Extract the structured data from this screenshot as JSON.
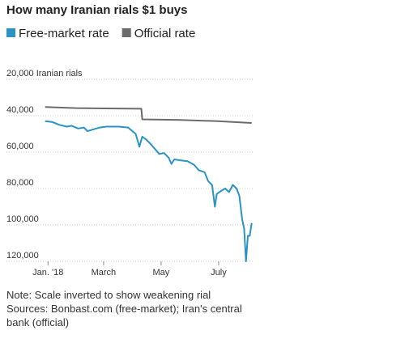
{
  "chart_data": {
    "type": "line",
    "title": "How many Iranian rials $1 buys",
    "inverted": true,
    "grid": true,
    "series": [
      {
        "name": "Free-market rate",
        "color": "#2b93c6",
        "x": [
          -3,
          5,
          12,
          20,
          25,
          32,
          38,
          42,
          48,
          55,
          62,
          75,
          85,
          93,
          97,
          100,
          104,
          108,
          113,
          118,
          123,
          128,
          131,
          134,
          140,
          148,
          155,
          160,
          166,
          170,
          174,
          177,
          179,
          183,
          188,
          192,
          196,
          200,
          203,
          206,
          208,
          210,
          212,
          214,
          216
        ],
        "values": [
          43000,
          43500,
          45000,
          46000,
          45500,
          47000,
          46500,
          48500,
          47500,
          46500,
          46000,
          46000,
          46500,
          50000,
          57000,
          51500,
          53000,
          55000,
          58000,
          61000,
          60500,
          63000,
          66500,
          64000,
          64500,
          65000,
          67000,
          70000,
          71000,
          76000,
          78000,
          90000,
          83000,
          81500,
          80000,
          82000,
          78000,
          80000,
          84000,
          97000,
          102000,
          120000,
          106000,
          106000,
          99000
        ]
      },
      {
        "name": "Official rate",
        "color": "#6b6b6b",
        "x": [
          -3,
          30,
          60,
          99,
          100,
          140,
          180,
          216
        ],
        "values": [
          35200,
          35800,
          36000,
          36200,
          42000,
          42300,
          43000,
          44000
        ]
      }
    ],
    "xlim": [
      -44,
      218
    ],
    "xticks": [
      {
        "value": 0,
        "label": "Jan. '18"
      },
      {
        "value": 59,
        "label": "March"
      },
      {
        "value": 120,
        "label": "May"
      },
      {
        "value": 181,
        "label": "July"
      }
    ],
    "ylim": [
      20000,
      120000
    ],
    "yticks": [
      {
        "value": 20000,
        "label": "20,000 Iranian rials"
      },
      {
        "value": 40000,
        "label": "40,000"
      },
      {
        "value": 60000,
        "label": "60,000"
      },
      {
        "value": 80000,
        "label": "80,000"
      },
      {
        "value": 100000,
        "label": "100,000"
      },
      {
        "value": 120000,
        "label": "120,000"
      }
    ],
    "notes": [
      "Note: Scale inverted to show weakening rial",
      "Sources: Bonbast.com (free-market); Iran's central bank (official)"
    ]
  }
}
